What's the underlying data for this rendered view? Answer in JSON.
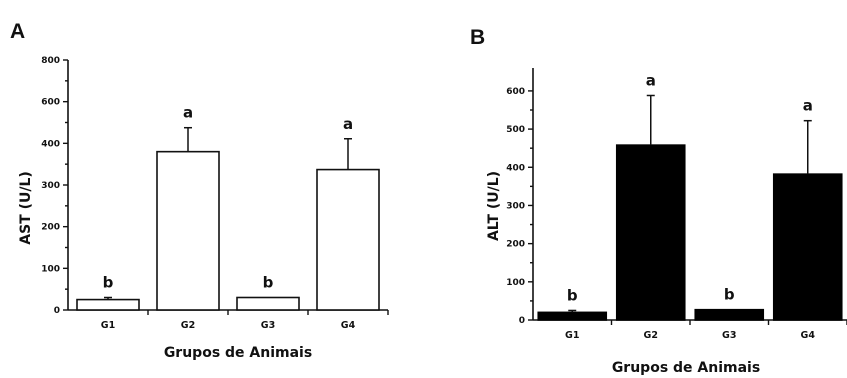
{
  "chart_data": [
    {
      "type": "bar",
      "panel_label": "A",
      "categories": [
        "G1",
        "G2",
        "G3",
        "G4"
      ],
      "values": [
        25,
        380,
        30,
        337
      ],
      "errors": [
        5,
        95,
        0,
        85
      ],
      "significance": [
        "b",
        "a",
        "b",
        "a"
      ],
      "xlabel": "Grupos de Animais",
      "ylabel": "AST  (U/L)",
      "ylim": [
        0,
        800
      ],
      "yticks": [
        0,
        100,
        200,
        300,
        400,
        600,
        800
      ],
      "ytick_labels": [
        "0",
        "100",
        "200",
        "300",
        "400",
        "600",
        "800"
      ],
      "bar_color": "#ffffff",
      "bar_edge": "#111111"
    },
    {
      "type": "bar",
      "panel_label": "B",
      "categories": [
        "G1",
        "G2",
        "G3",
        "G4"
      ],
      "values": [
        20,
        458,
        27,
        382
      ],
      "errors": [
        5,
        130,
        0,
        140
      ],
      "significance": [
        "b",
        "a",
        "b",
        "a"
      ],
      "xlabel": "Grupos de Animais",
      "ylabel": "ALT  (U/L)",
      "ylim": [
        0,
        660
      ],
      "yticks": [
        0,
        100,
        200,
        300,
        400,
        500,
        600
      ],
      "ytick_labels": [
        "0",
        "100",
        "200",
        "300",
        "400",
        "500",
        "600"
      ],
      "bar_color": "#000000",
      "bar_edge": "#000000"
    }
  ]
}
